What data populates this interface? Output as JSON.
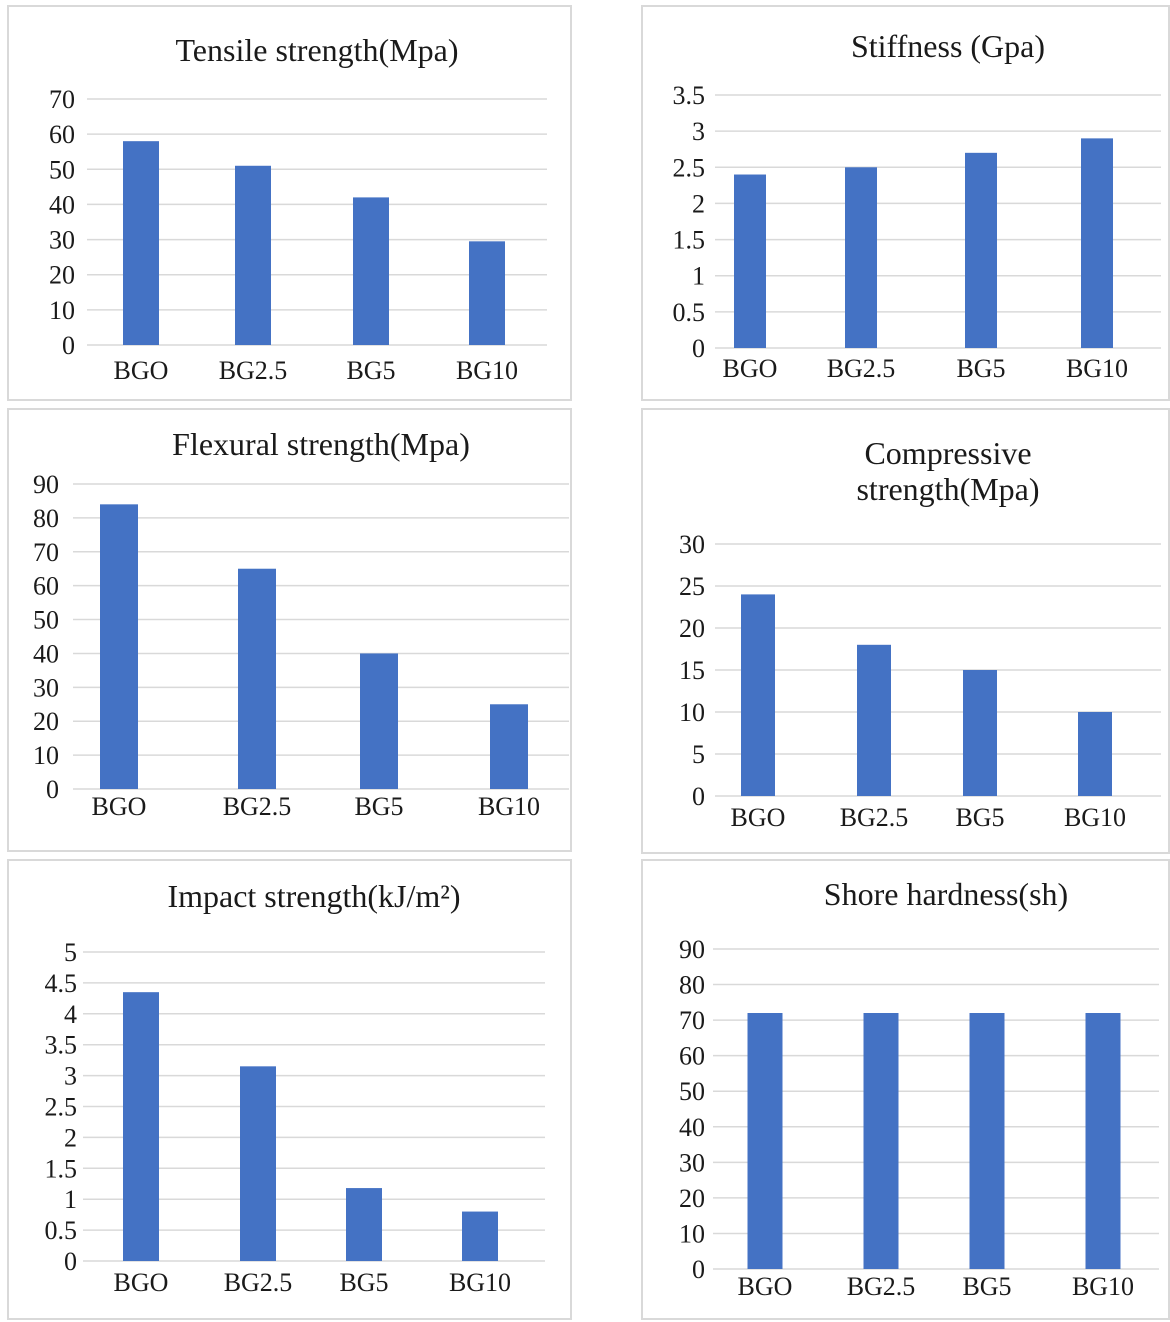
{
  "colors": {
    "bar": "#4472c4",
    "grid": "#d9d9d9",
    "border": "#d9d9d9"
  },
  "chart_data": [
    {
      "type": "bar",
      "title": "Tensile strength(Mpa)",
      "categories": [
        "BGO",
        "BG2.5",
        "BG5",
        "BG10"
      ],
      "values": [
        58,
        51,
        42,
        29.5
      ],
      "ylim": [
        0,
        70
      ],
      "yticks": [
        "0",
        "10",
        "20",
        "30",
        "40",
        "50",
        "60",
        "70"
      ],
      "grid": true
    },
    {
      "type": "bar",
      "title": "Stiffness (Gpa)",
      "categories": [
        "BGO",
        "BG2.5",
        "BG5",
        "BG10"
      ],
      "values": [
        2.4,
        2.5,
        2.7,
        2.9
      ],
      "ylim": [
        0,
        3.5
      ],
      "yticks": [
        "0",
        "0.5",
        "1",
        "1.5",
        "2",
        "2.5",
        "3",
        "3.5"
      ],
      "grid": true
    },
    {
      "type": "bar",
      "title": "Flexural strength(Mpa)",
      "categories": [
        "BGO",
        "BG2.5",
        "BG5",
        "BG10"
      ],
      "values": [
        84,
        65,
        40,
        25
      ],
      "ylim": [
        0,
        90
      ],
      "yticks": [
        "0",
        "10",
        "20",
        "30",
        "40",
        "50",
        "60",
        "70",
        "80",
        "90"
      ],
      "grid": true
    },
    {
      "type": "bar",
      "title": "Compressive strength(Mpa)",
      "title_lines": [
        "Compressive",
        "strength(Mpa)"
      ],
      "categories": [
        "BGO",
        "BG2.5",
        "BG5",
        "BG10"
      ],
      "values": [
        24,
        18,
        15,
        10
      ],
      "ylim": [
        0,
        30
      ],
      "yticks": [
        "0",
        "5",
        "10",
        "15",
        "20",
        "25",
        "30"
      ],
      "grid": true
    },
    {
      "type": "bar",
      "title": "Impact strength(kJ/m²)",
      "categories": [
        "BGO",
        "BG2.5",
        "BG5",
        "BG10"
      ],
      "values": [
        4.35,
        3.15,
        1.18,
        0.8
      ],
      "ylim": [
        0,
        5
      ],
      "yticks": [
        "0",
        "0.5",
        "1",
        "1.5",
        "2",
        "2.5",
        "3",
        "3.5",
        "4",
        "4.5",
        "5"
      ],
      "grid": true
    },
    {
      "type": "bar",
      "title": "Shore hardness(sh)",
      "categories": [
        "BGO",
        "BG2.5",
        "BG5",
        "BG10"
      ],
      "values": [
        72,
        72,
        72,
        72
      ],
      "ylim": [
        0,
        90
      ],
      "yticks": [
        "0",
        "10",
        "20",
        "30",
        "40",
        "50",
        "60",
        "70",
        "80",
        "90"
      ],
      "grid": true
    }
  ]
}
